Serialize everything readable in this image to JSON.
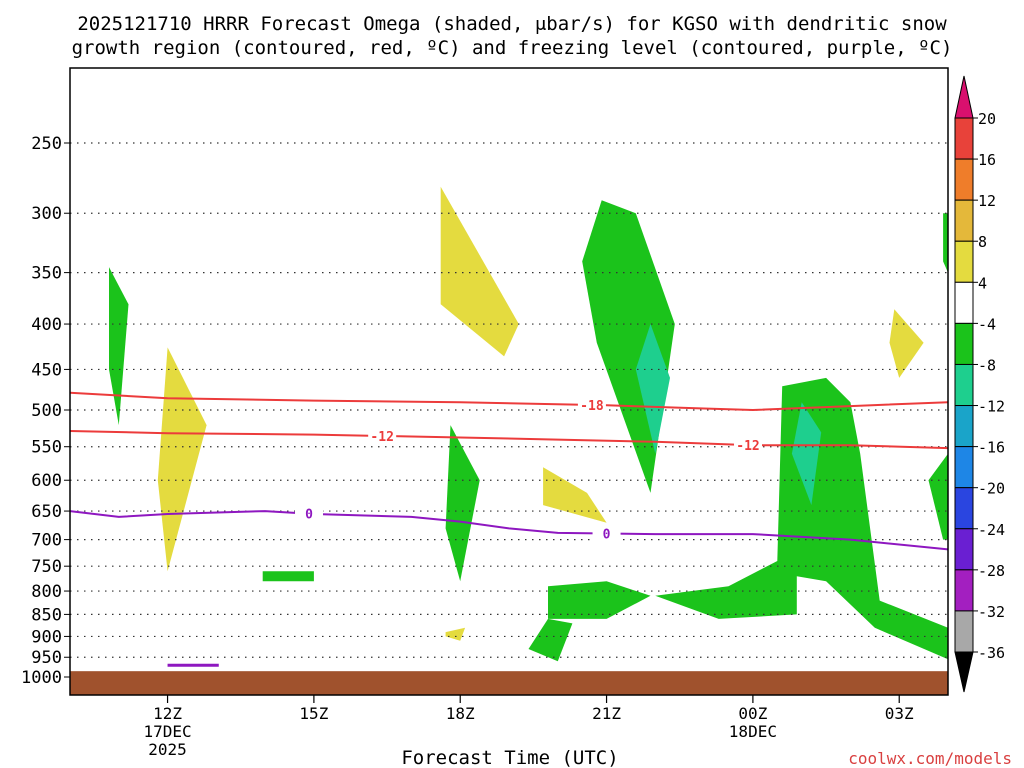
{
  "title_line1": "2025121710 HRRR Forecast Omega (shaded, μbar/s) for KGSO with dendritic snow",
  "title_line2": "growth region (contoured, red, ºC) and freezing level (contoured, purple, ºC)",
  "xlabel": "Forecast Time (UTC)",
  "credit": "coolwx.com/models",
  "x_ticks": [
    {
      "h": 12,
      "lines": [
        "12Z",
        "17DEC",
        "2025"
      ]
    },
    {
      "h": 15,
      "lines": [
        "15Z"
      ]
    },
    {
      "h": 18,
      "lines": [
        "18Z"
      ]
    },
    {
      "h": 21,
      "lines": [
        "21Z"
      ]
    },
    {
      "h": 24,
      "lines": [
        "00Z",
        "18DEC"
      ]
    },
    {
      "h": 27,
      "lines": [
        "03Z"
      ]
    }
  ],
  "colorbar": {
    "labels": [
      "20",
      "16",
      "12",
      "8",
      "4",
      "-4",
      "-8",
      "-12",
      "-16",
      "-20",
      "-24",
      "-28",
      "-32",
      "-36"
    ],
    "colors": [
      "#d9106e",
      "#e8423a",
      "#ef7d2a",
      "#e4b83a",
      "#e4db3f",
      "#ffffff",
      "#1bc31b",
      "#1ecf8e",
      "#1aa4c9",
      "#1e86e6",
      "#2a45e0",
      "#6a1fd2",
      "#a31fc0",
      "#a8a8a8",
      "#000000"
    ]
  },
  "chart_data": {
    "type": "heatmap",
    "x_unit": "forecast hour (from 00Z 17DEC 2025)",
    "x_range": [
      10,
      28
    ],
    "y_unit": "pressure (hPa)",
    "y_range": [
      1000,
      200
    ],
    "y_ticks": [
      250,
      300,
      350,
      400,
      450,
      500,
      550,
      600,
      650,
      700,
      750,
      800,
      850,
      900,
      950,
      1000
    ],
    "omega_regions": [
      {
        "level": -4,
        "color": "#1bc31b",
        "pts": [
          [
            10.8,
            345
          ],
          [
            11.2,
            380
          ],
          [
            11.0,
            520
          ],
          [
            10.8,
            450
          ]
        ]
      },
      {
        "level": 4,
        "color": "#e4db3f",
        "pts": [
          [
            12.0,
            425
          ],
          [
            12.8,
            520
          ],
          [
            12.0,
            760
          ],
          [
            11.8,
            600
          ]
        ]
      },
      {
        "level": -4,
        "color": "#1bc31b",
        "pts": [
          [
            13.95,
            760
          ],
          [
            15.0,
            760
          ],
          [
            15.0,
            780
          ],
          [
            13.95,
            780
          ]
        ]
      },
      {
        "level": 4,
        "color": "#e4db3f",
        "pts": [
          [
            17.6,
            280
          ],
          [
            19.2,
            400
          ],
          [
            18.9,
            435
          ],
          [
            17.6,
            380
          ]
        ]
      },
      {
        "level": -4,
        "color": "#1bc31b",
        "pts": [
          [
            17.8,
            520
          ],
          [
            18.4,
            600
          ],
          [
            18.0,
            780
          ],
          [
            17.7,
            680
          ]
        ]
      },
      {
        "level": 4,
        "color": "#e4db3f",
        "pts": [
          [
            17.7,
            890
          ],
          [
            18.1,
            880
          ],
          [
            18.0,
            910
          ],
          [
            17.7,
            900
          ]
        ]
      },
      {
        "level": -4,
        "color": "#1bc31b",
        "pts": [
          [
            19.8,
            860
          ],
          [
            20.3,
            870
          ],
          [
            20.0,
            960
          ],
          [
            19.4,
            930
          ]
        ]
      },
      {
        "level": 4,
        "color": "#e4db3f",
        "pts": [
          [
            19.7,
            580
          ],
          [
            20.6,
            620
          ],
          [
            21.0,
            670
          ],
          [
            19.7,
            640
          ]
        ]
      },
      {
        "level": -4,
        "color": "#1bc31b",
        "pts": [
          [
            20.9,
            290
          ],
          [
            21.6,
            300
          ],
          [
            22.4,
            400
          ],
          [
            21.9,
            620
          ],
          [
            20.8,
            420
          ],
          [
            20.5,
            340
          ]
        ]
      },
      {
        "level": -8,
        "color": "#1ecf8e",
        "pts": [
          [
            21.9,
            400
          ],
          [
            22.3,
            460
          ],
          [
            22.0,
            560
          ],
          [
            21.6,
            450
          ]
        ]
      },
      {
        "level": -4,
        "color": "#1bc31b",
        "pts": [
          [
            19.8,
            790
          ],
          [
            21.0,
            780
          ],
          [
            21.9,
            810
          ],
          [
            21.0,
            860
          ],
          [
            19.8,
            860
          ]
        ]
      },
      {
        "level": -4,
        "color": "#1bc31b",
        "pts": [
          [
            22.0,
            810
          ],
          [
            23.5,
            790
          ],
          [
            24.5,
            740
          ],
          [
            24.6,
            470
          ],
          [
            25.5,
            460
          ],
          [
            26.0,
            490
          ],
          [
            26.2,
            560
          ],
          [
            26.6,
            820
          ],
          [
            28.0,
            880
          ],
          [
            28.0,
            955
          ],
          [
            26.5,
            880
          ],
          [
            25.5,
            780
          ],
          [
            24.9,
            770
          ],
          [
            24.9,
            850
          ],
          [
            23.3,
            860
          ]
        ]
      },
      {
        "level": -8,
        "color": "#1ecf8e",
        "pts": [
          [
            25.0,
            490
          ],
          [
            25.4,
            530
          ],
          [
            25.2,
            640
          ],
          [
            24.8,
            560
          ]
        ]
      },
      {
        "level": 4,
        "color": "#e4db3f",
        "pts": [
          [
            26.9,
            385
          ],
          [
            27.5,
            420
          ],
          [
            27.0,
            460
          ],
          [
            26.8,
            420
          ]
        ]
      },
      {
        "level": -4,
        "color": "#1bc31b",
        "pts": [
          [
            27.9,
            300
          ],
          [
            28.0,
            300
          ],
          [
            28.0,
            350
          ],
          [
            27.9,
            340
          ]
        ]
      },
      {
        "level": -4,
        "color": "#1bc31b",
        "pts": [
          [
            28.0,
            560
          ],
          [
            27.6,
            600
          ],
          [
            27.9,
            700
          ],
          [
            28.0,
            700
          ]
        ]
      }
    ],
    "contours": [
      {
        "label": "-18",
        "color": "#ec3b3b",
        "label_at": 20.7,
        "pts": [
          [
            10,
            478
          ],
          [
            12,
            485
          ],
          [
            15,
            488
          ],
          [
            18,
            490
          ],
          [
            21,
            494
          ],
          [
            23,
            498
          ],
          [
            24,
            500
          ],
          [
            26,
            495
          ],
          [
            28,
            490
          ]
        ]
      },
      {
        "label": "-12",
        "color": "#ec3b3b",
        "label_at": 16.4,
        "pts": [
          [
            10,
            528
          ],
          [
            12,
            531
          ],
          [
            15,
            533
          ],
          [
            18,
            537
          ],
          [
            20,
            540
          ],
          [
            22,
            543
          ],
          [
            24,
            548
          ],
          [
            26,
            548
          ],
          [
            28,
            552
          ]
        ]
      },
      {
        "label": "-12",
        "color": "#ec3b3b",
        "label_at": 23.9,
        "pts": []
      },
      {
        "label": "0",
        "color": "#8e17c0",
        "label_at": 14.9,
        "pts": [
          [
            10,
            650
          ],
          [
            11,
            660
          ],
          [
            12,
            655
          ],
          [
            14,
            650
          ],
          [
            15,
            655
          ],
          [
            17,
            660
          ],
          [
            18,
            668
          ],
          [
            19,
            680
          ],
          [
            20,
            688
          ],
          [
            22,
            690
          ],
          [
            24,
            690
          ],
          [
            26,
            700
          ],
          [
            28,
            718
          ]
        ]
      },
      {
        "label": "0",
        "color": "#8e17c0",
        "label_at": 21.0,
        "pts": []
      }
    ],
    "surface_level": 985
  }
}
